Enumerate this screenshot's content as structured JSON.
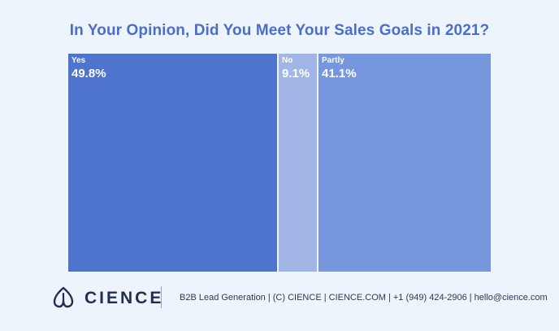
{
  "chart_data": {
    "type": "treemap",
    "title": "In Your Opinion, Did You Meet Your Sales Goals in 2021?",
    "categories": [
      "Yes",
      "No",
      "Partly"
    ],
    "values": [
      49.8,
      9.1,
      41.1
    ],
    "value_labels": [
      "49.8%",
      "9.1%",
      "41.1%"
    ],
    "unit": "%",
    "colors": [
      "#4e74cd",
      "#a1b5e6",
      "#7696dd"
    ]
  },
  "footer": {
    "logo_text": "CIENCE",
    "logo_icon": "cience-logo-icon",
    "info": "B2B Lead Generation | (C) CIENCE | CIENCE.COM | +1 (949) 424-2906 | hello@cience.com"
  }
}
